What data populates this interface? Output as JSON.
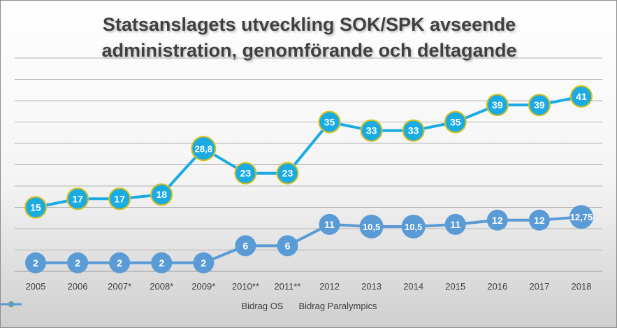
{
  "chart_data": {
    "type": "line",
    "title_lines": [
      "Statsanslagets utveckling SOK/SPK avseende",
      "administration, genomförande och deltagande"
    ],
    "categories": [
      "2005",
      "2006",
      "2007*",
      "2008*",
      "2009*",
      "2010**",
      "2011**",
      "2012",
      "2013",
      "2014",
      "2015",
      "2016",
      "2017",
      "2018"
    ],
    "series": [
      {
        "name": "Bidrag OS",
        "color": "#1aabe3",
        "marker_accent": "#d8c11a",
        "values": [
          15,
          17,
          17,
          18,
          28.8,
          23,
          23,
          35,
          33,
          33,
          35,
          39,
          39,
          41
        ],
        "labels": [
          "15",
          "17",
          "17",
          "18",
          "28,8",
          "23",
          "23",
          "35",
          "33",
          "33",
          "35",
          "39",
          "39",
          "41"
        ]
      },
      {
        "name": "Bidrag Paralympics",
        "color": "#5b9bd5",
        "values": [
          2,
          2,
          2,
          2,
          2,
          6,
          6,
          11,
          10.5,
          10.5,
          11,
          12,
          12,
          12.75
        ],
        "labels": [
          "2",
          "2",
          "2",
          "2",
          "2",
          "6",
          "6",
          "11",
          "10,5",
          "10,5",
          "11",
          "12",
          "12",
          "12,75"
        ]
      }
    ],
    "ylim": [
      0,
      50
    ],
    "y_step": 5,
    "y_ticks_shown": false,
    "grid": true,
    "legend_position": "bottom"
  }
}
